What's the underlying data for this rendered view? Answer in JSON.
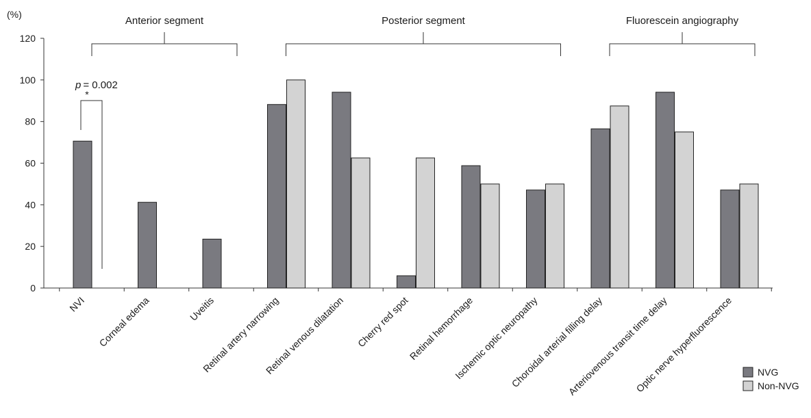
{
  "chart_data": {
    "type": "bar",
    "ylabel": "(%)",
    "ylim": [
      0,
      120
    ],
    "yticks": [
      0,
      20,
      40,
      60,
      80,
      100,
      120
    ],
    "categories": [
      "NVI",
      "Corneal edema",
      "Uveitis",
      "Retinal artery narrowing",
      "Retinal venous dilatation",
      "Cherry red spot",
      "Retinal hemorrhage",
      "Ischemic optic neuropathy",
      "Choroidal arterial filling delay",
      "Arteriovenous transit time delay",
      "Optic nerve hyperfluorescence"
    ],
    "series": [
      {
        "name": "NVG",
        "color": "#7a7a80",
        "values": [
          70.6,
          41.2,
          23.5,
          88.2,
          94.1,
          5.9,
          58.8,
          47.1,
          76.5,
          94.1,
          47.1
        ]
      },
      {
        "name": "Non-NVG",
        "color": "#d3d3d3",
        "values": [
          0,
          0,
          0,
          100,
          62.5,
          62.5,
          50,
          50,
          87.5,
          75,
          50
        ]
      }
    ],
    "groups": [
      {
        "label": "Anterior segment",
        "from": 0,
        "to": 2
      },
      {
        "label": "Posterior segment",
        "from": 3,
        "to": 7
      },
      {
        "label": "Fluorescein angiography",
        "from": 8,
        "to": 10
      }
    ],
    "annotation": {
      "p_symbol": "p",
      "p_value": "= 0.002",
      "star": "*"
    },
    "legend_position": "bottom-right"
  }
}
